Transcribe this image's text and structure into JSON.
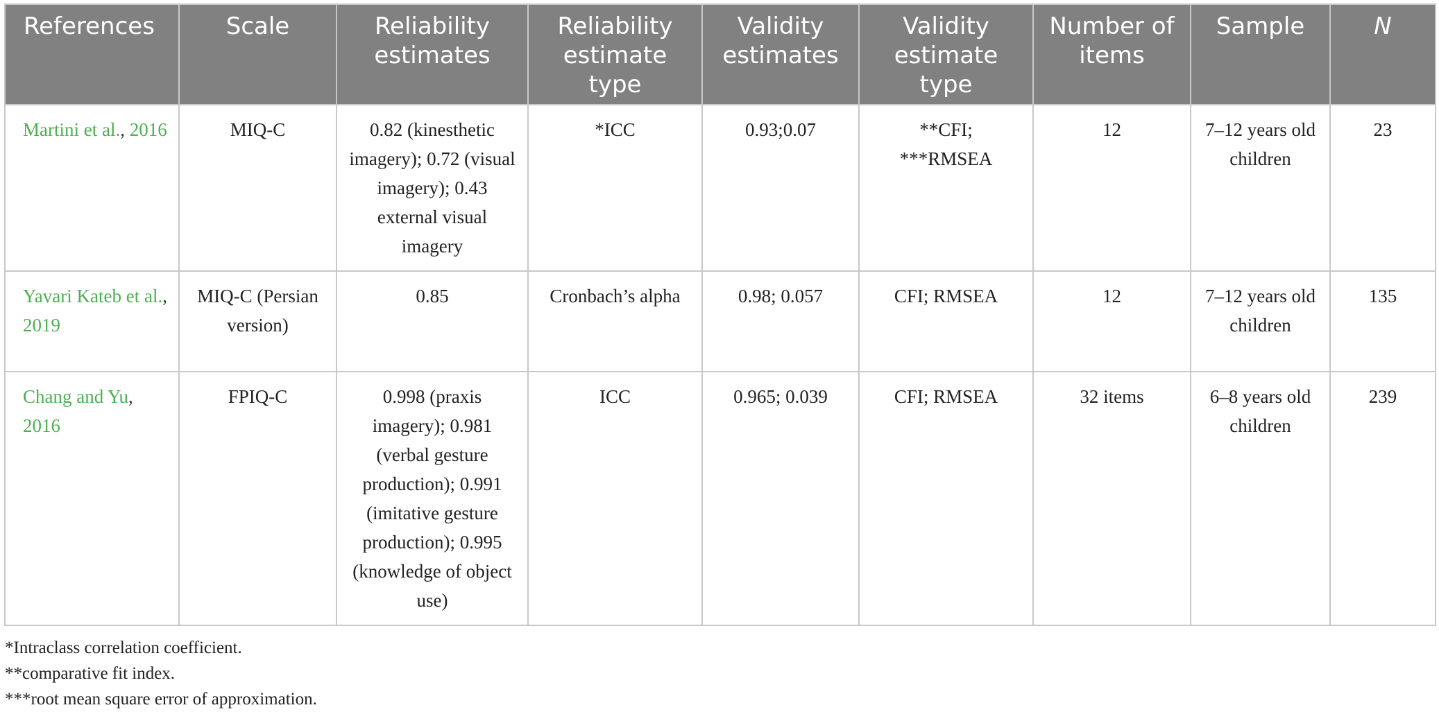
{
  "headers": {
    "references": "References",
    "scale": "Scale",
    "reliability_estimates": "Reliability estimates",
    "reliability_estimate_type": "Reliability estimate type",
    "validity_estimates": "Validity estimates",
    "validity_estimate_type": "Validity estimate type",
    "number_of_items": "Number of items",
    "sample": "Sample",
    "n": "N"
  },
  "rows": [
    {
      "ref_link": "Martini et al.",
      "ref_sep": ", ",
      "ref_year": "2016",
      "scale": "MIQ-C",
      "reliability_estimates": "0.82 (kinesthetic imagery); 0.72 (visual imagery); 0.43 external visual imagery",
      "reliability_type": "*ICC",
      "validity_estimates": "0.93;0.07",
      "validity_type_line1": "**CFI;",
      "validity_type_line2": "***RMSEA",
      "items": "12",
      "sample": "7–12 years old children",
      "n": "23"
    },
    {
      "ref_link": "Yavari Kateb et al.",
      "ref_sep": ", ",
      "ref_year": "2019",
      "scale": "MIQ-C (Persian version)",
      "reliability_estimates": "0.85",
      "reliability_type": "Cronbach’s alpha",
      "validity_estimates": "0.98; 0.057",
      "validity_type_line1": "CFI; RMSEA",
      "validity_type_line2": "",
      "items": "12",
      "sample": "7–12 years old children",
      "n": "135"
    },
    {
      "ref_link": "Chang and Yu",
      "ref_sep": ", ",
      "ref_year": "2016",
      "scale": "FPIQ-C",
      "reliability_estimates": "0.998 (praxis imagery); 0.981 (verbal gesture production); 0.991 (imitative gesture production); 0.995 (knowledge of object use)",
      "reliability_type": "ICC",
      "validity_estimates": "0.965; 0.039",
      "validity_type_line1": "CFI; RMSEA",
      "validity_type_line2": "",
      "items": "32 items",
      "sample": "6–8 years old children",
      "n": "239"
    }
  ],
  "footnotes": [
    "*Intraclass correlation coefficient.",
    "**comparative fit index.",
    "***root mean square error of approximation."
  ],
  "colors": {
    "header_bg": "#818181",
    "citation": "#4caf50",
    "border": "#c8c8c8"
  }
}
